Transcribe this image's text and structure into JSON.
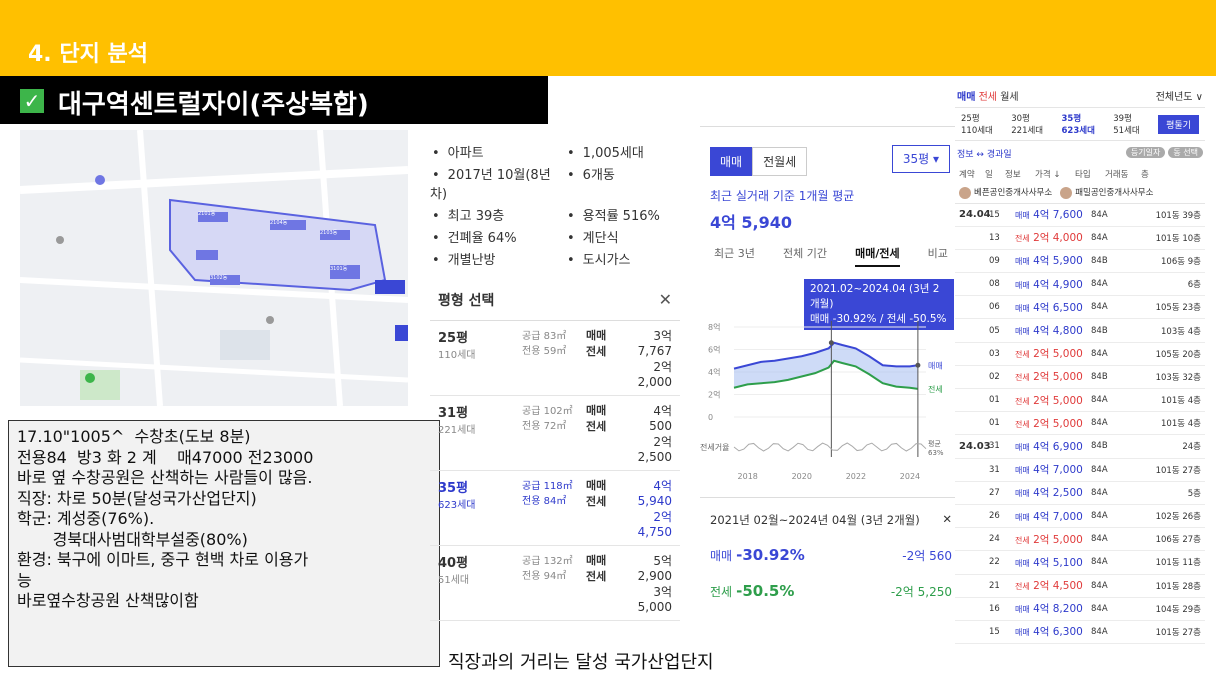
{
  "header": {
    "section_title": "4. 단지 분석",
    "check_icon": "✓",
    "complex_name": "대구역센트럴자이(주상복합)"
  },
  "map_labels": [
    "2101동",
    "2104동",
    "2103동",
    "3101동",
    "3102동"
  ],
  "notes": [
    "17.10\"1005^  수창초(도보 8분)",
    "전용84  방3 화 2 계    매47000 전23000",
    "바로 옆 수창공원은 산책하는 사람들이 많음.",
    "직장: 차로 50분(달성국가산업단지)",
    "학군: 계성중(76%).",
    "       경북대사범대학부설중(80%)",
    "환경: 북구에 이마트, 중구 현백 차로 이용가",
    "능",
    "바로옆수창공원 산책많이함"
  ],
  "caption": "직장과의 거리는 달성 국가산업단지",
  "info": {
    "items": [
      "아파트",
      "1,005세대",
      "2017년 10월(8년차)",
      "6개동",
      "최고 39층",
      "용적률 516%",
      "건폐율 64%",
      "계단식",
      "개별난방",
      "도시가스"
    ],
    "pyeong_title": "평형 선택",
    "close": "✕",
    "rows": [
      {
        "py": "25평",
        "supply": "공급 83㎡",
        "units": "110세대",
        "exclusive": "전용 59㎡",
        "sale_label": "매매",
        "sale": "3억 7,767",
        "jeonse_label": "전세",
        "jeonse": "2억 2,000"
      },
      {
        "py": "31평",
        "supply": "공급 102㎡",
        "units": "221세대",
        "exclusive": "전용 72㎡",
        "sale_label": "매매",
        "sale": "4억 500",
        "jeonse_label": "전세",
        "jeonse": "2억 2,500"
      },
      {
        "py": "35평",
        "supply": "공급 118㎡",
        "units": "623세대",
        "exclusive": "전용 84㎡",
        "sale_label": "매매",
        "sale": "4억 5,940",
        "jeonse_label": "전세",
        "jeonse": "2억 4,750"
      },
      {
        "py": "40평",
        "supply": "공급 132㎡",
        "units": "51세대",
        "exclusive": "전용 94㎡",
        "sale_label": "매매",
        "sale": "5억 2,900",
        "jeonse_label": "전세",
        "jeonse": "3억 5,000"
      }
    ]
  },
  "chart_panel": {
    "tab_sale": "매매",
    "tab_jeonse": "전월세",
    "size_select": "35평",
    "avg_label": "최근 실거래 기준 1개월 평균",
    "avg_value": "4억 5,940",
    "period_tabs": [
      "최근 3년",
      "전체 기간",
      "매매/전세",
      "비교"
    ],
    "tooltip_line1": "2021.02~2024.04 (3년 2개월)",
    "tooltip_line2": "매매 -30.92% / 전세 -50.5%",
    "summary_title": "2021년 02월~2024년 04월 (3년 2개월)",
    "summary_close": "✕",
    "sale_label": "매매",
    "sale_pct": "-30.92%",
    "sale_diff": "-2억 560",
    "jeonse_label": "전세",
    "jeonse_pct": "-50.5%",
    "jeonse_diff": "-2억 5,250"
  },
  "chart_data": {
    "type": "line",
    "x_ticks": [
      "2018",
      "2020",
      "2022",
      "2024"
    ],
    "y_ticks": [
      "8억",
      "6억",
      "4억",
      "2억",
      "0"
    ],
    "ylim": [
      0,
      8
    ],
    "x": [
      2017.5,
      2018,
      2018.5,
      2019,
      2019.5,
      2020,
      2020.5,
      2021,
      2021.2,
      2021.5,
      2022,
      2022.5,
      2023,
      2023.5,
      2024,
      2024.3
    ],
    "series": [
      {
        "name": "매매",
        "color": "#3A47D5",
        "values": [
          4.3,
          4.6,
          4.9,
          5.0,
          5.2,
          5.4,
          5.7,
          6.1,
          6.6,
          6.4,
          6.1,
          5.4,
          4.6,
          4.5,
          4.5,
          4.6
        ]
      },
      {
        "name": "전세",
        "color": "#2E9E4B",
        "values": [
          2.6,
          2.9,
          3.0,
          3.1,
          3.3,
          3.6,
          3.9,
          4.4,
          5.0,
          4.8,
          4.5,
          3.8,
          3.0,
          2.7,
          2.6,
          2.5
        ]
      }
    ],
    "volume_label": "전세거율",
    "volume_pct_label": "평균",
    "volume_pct": "63%",
    "range_start": 2021.1,
    "range_end": 2024.3,
    "range_start_value": 6.6,
    "range_end_value": 4.6
  },
  "transactions": {
    "tabs": [
      "매매",
      "전세",
      "월세"
    ],
    "year_filter": "전체년도 ∨",
    "sizes": [
      {
        "py": "25평",
        "units": "110세대"
      },
      {
        "py": "30평",
        "units": "221세대"
      },
      {
        "py": "35평",
        "units": "623세대"
      },
      {
        "py": "39평",
        "units": "51세대"
      }
    ],
    "pyeong_button": "평둘기",
    "tool_left": "정보 ↔ 경과일",
    "tool_pill1": "등기일자",
    "tool_pill2": "동 선택",
    "head": [
      "계약",
      "일",
      "정보",
      "가격 ↓",
      "타입",
      "거래동",
      "층"
    ],
    "agents": [
      "베픈공인중개사사무소",
      "패밀공인중개사사무소"
    ],
    "rows": [
      {
        "ym": "24.04",
        "d": "15",
        "kind": "매매",
        "price": "4억 7,600",
        "type": "84A",
        "dong": "101동 39층"
      },
      {
        "ym": "",
        "d": "13",
        "kind": "전세",
        "price": "2억 4,000",
        "type": "84A",
        "dong": "101동 10층"
      },
      {
        "ym": "",
        "d": "09",
        "kind": "매매",
        "price": "4억 5,900",
        "type": "84B",
        "dong": "106동 9층"
      },
      {
        "ym": "",
        "d": "08",
        "kind": "매매",
        "price": "4억 4,900",
        "type": "84A",
        "dong": "6층"
      },
      {
        "ym": "",
        "d": "06",
        "kind": "매매",
        "price": "4억 6,500",
        "type": "84A",
        "dong": "105동 23층"
      },
      {
        "ym": "",
        "d": "05",
        "kind": "매매",
        "price": "4억 4,800",
        "type": "84B",
        "dong": "103동 4층"
      },
      {
        "ym": "",
        "d": "03",
        "kind": "전세",
        "price": "2억 5,000",
        "type": "84A",
        "dong": "105동 20층"
      },
      {
        "ym": "",
        "d": "02",
        "kind": "전세",
        "price": "2억 5,000",
        "type": "84B",
        "dong": "103동 32층"
      },
      {
        "ym": "",
        "d": "01",
        "kind": "전세",
        "price": "2억 5,000",
        "type": "84A",
        "dong": "101동 4층"
      },
      {
        "ym": "",
        "d": "01",
        "kind": "전세",
        "price": "2억 5,000",
        "type": "84A",
        "dong": "101동 4층"
      },
      {
        "ym": "24.03",
        "d": "31",
        "kind": "매매",
        "price": "4억 6,900",
        "type": "84B",
        "dong": "24층"
      },
      {
        "ym": "",
        "d": "31",
        "kind": "매매",
        "price": "4억 7,000",
        "type": "84A",
        "dong": "101동 27층"
      },
      {
        "ym": "",
        "d": "27",
        "kind": "매매",
        "price": "4억 2,500",
        "type": "84A",
        "dong": "5층"
      },
      {
        "ym": "",
        "d": "26",
        "kind": "매매",
        "price": "4억 7,000",
        "type": "84A",
        "dong": "102동 26층"
      },
      {
        "ym": "",
        "d": "24",
        "kind": "전세",
        "price": "2억 5,000",
        "type": "84A",
        "dong": "106동 27층"
      },
      {
        "ym": "",
        "d": "22",
        "kind": "매매",
        "price": "4억 5,100",
        "type": "84A",
        "dong": "101동 11층"
      },
      {
        "ym": "",
        "d": "21",
        "kind": "전세",
        "price": "2억 4,500",
        "type": "84A",
        "dong": "101동 28층"
      },
      {
        "ym": "",
        "d": "16",
        "kind": "매매",
        "price": "4억 8,200",
        "type": "84A",
        "dong": "104동 29층"
      },
      {
        "ym": "",
        "d": "15",
        "kind": "매매",
        "price": "4억 6,300",
        "type": "84A",
        "dong": "101동 27층"
      }
    ]
  },
  "colors": {
    "band": "#FFC000",
    "accent": "#3A47D5",
    "jeonse": "#2E9E4B",
    "red": "#E03A3A"
  }
}
